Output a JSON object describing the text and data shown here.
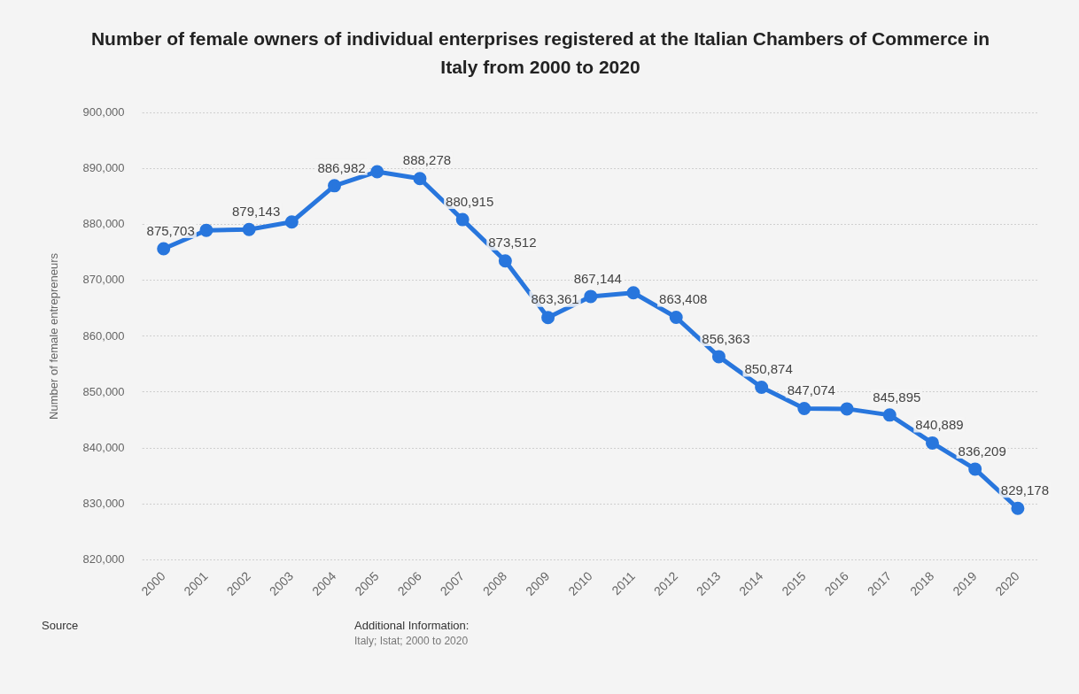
{
  "chart_data": {
    "type": "line",
    "title": "Number of female owners of individual enterprises registered at the Italian Chambers of Commerce in Italy from 2000 to 2020",
    "ylabel": "Number of female entrepreneurs",
    "categories": [
      "2000",
      "2001",
      "2002",
      "2003",
      "2004",
      "2005",
      "2006",
      "2007",
      "2008",
      "2009",
      "2010",
      "2011",
      "2012",
      "2013",
      "2014",
      "2015",
      "2016",
      "2017",
      "2018",
      "2019",
      "2020"
    ],
    "series": [
      {
        "color": "#2876dd",
        "values": [
          875703,
          879000,
          879143,
          880500,
          886982,
          889500,
          888278,
          880915,
          873512,
          863361,
          867144,
          867800,
          863408,
          856363,
          850874,
          847074,
          847000,
          845895,
          840889,
          836209,
          829178
        ],
        "value_labels": [
          "875,703",
          null,
          "879,143",
          null,
          "886,982",
          null,
          "888,278",
          "880,915",
          "873,512",
          "863,361",
          "867,144",
          null,
          "863,408",
          "856,363",
          "850,874",
          "847,074",
          null,
          "845,895",
          "840,889",
          "836,209",
          "829,178"
        ]
      }
    ],
    "ylim": [
      820000,
      900000
    ],
    "yticks": [
      {
        "value": 820000,
        "label": "820,000"
      },
      {
        "value": 830000,
        "label": "830,000"
      },
      {
        "value": 840000,
        "label": "840,000"
      },
      {
        "value": 850000,
        "label": "850,000"
      },
      {
        "value": 860000,
        "label": "860,000"
      },
      {
        "value": 870000,
        "label": "870,000"
      },
      {
        "value": 880000,
        "label": "880,000"
      },
      {
        "value": 890000,
        "label": "890,000"
      },
      {
        "value": 900000,
        "label": "900,000"
      }
    ],
    "grid": "y",
    "legend": false,
    "marker": "circle",
    "line_style": "solid",
    "annotations": [
      "Source",
      "Additional Information:",
      "Italy; Istat; 2000 to 2020"
    ]
  }
}
